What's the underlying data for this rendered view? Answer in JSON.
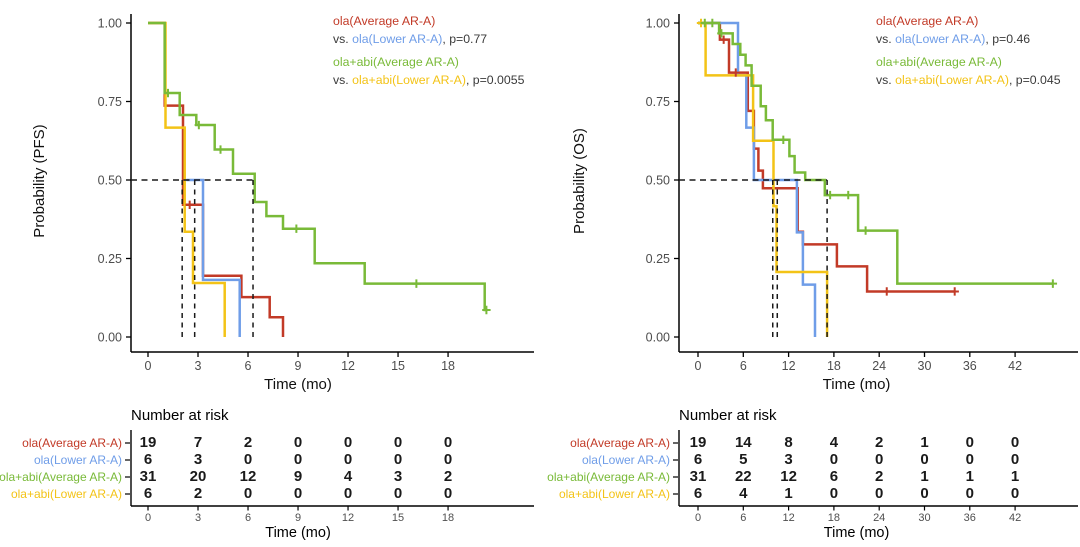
{
  "colors": {
    "red": "#c23a27",
    "blue": "#6f9de8",
    "green": "#79ba38",
    "yellow": "#f3c317",
    "dark": "#3a3a3a",
    "axis": "#000000",
    "tick_label": "#4d4d4d",
    "number": "#1a1a1a",
    "guide": "#1a1a1a"
  },
  "chart_data": [
    {
      "id": "pfs",
      "type": "line",
      "subtype": "kaplan-meier-step",
      "title": "",
      "xlabel": "Time (mo)",
      "ylabel": "Probability (PFS)",
      "xlim": [
        0,
        23
      ],
      "ylim": [
        0,
        1
      ],
      "grid": false,
      "x_ticks": [
        0,
        3,
        6,
        9,
        12,
        15,
        18
      ],
      "y_ticks": [
        0,
        0.25,
        0.5,
        0.75,
        1
      ],
      "y_tick_labels": [
        "0.00",
        "0.25",
        "0.50",
        "0.75",
        "1.00"
      ],
      "legend_position": "top-right-inside",
      "legend_lines": [
        [
          {
            "text": "ola(Average AR-A)",
            "color": "red"
          }
        ],
        [
          {
            "text": "vs. ",
            "color": "dark"
          },
          {
            "text": "ola(Lower AR-A)",
            "color": "blue"
          },
          {
            "text": ", p=0.77",
            "color": "dark"
          }
        ],
        [
          {
            "text": "ola+abi(Average AR-A)",
            "color": "green"
          }
        ],
        [
          {
            "text": "vs. ",
            "color": "dark"
          },
          {
            "text": "ola+abi(Lower AR-A)",
            "color": "yellow"
          },
          {
            "text": ", p=0.0055",
            "color": "dark"
          }
        ]
      ],
      "guides": {
        "h_y": 0.5,
        "h_x_end": 6.3,
        "v_x": [
          2.05,
          2.8,
          6.3
        ]
      },
      "series": [
        {
          "name": "ola(Average AR-A)",
          "color": "red",
          "steps": [
            [
              0,
              1
            ],
            [
              1,
              0.737
            ],
            [
              2.1,
              0.421
            ],
            [
              3.3,
              0.195
            ],
            [
              5.6,
              0.127
            ],
            [
              7.3,
              0.063
            ],
            [
              8.1,
              0
            ]
          ],
          "censors": [
            [
              2.5,
              0.421
            ]
          ]
        },
        {
          "name": "ola(Lower AR-A)",
          "color": "blue",
          "steps": [
            [
              2.3,
              0.5
            ],
            [
              3.3,
              0.182
            ],
            [
              5.5,
              0
            ]
          ],
          "censors": []
        },
        {
          "name": "ola+abi(Lower AR-A)",
          "color": "yellow",
          "steps": [
            [
              0,
              1
            ],
            [
              1.05,
              0.667
            ],
            [
              2.2,
              0.335
            ],
            [
              2.7,
              0.172
            ],
            [
              4.6,
              0
            ]
          ],
          "censors": []
        },
        {
          "name": "ola+abi(Average AR-A)",
          "color": "green",
          "steps": [
            [
              0,
              1
            ],
            [
              1,
              0.777
            ],
            [
              1.9,
              0.707
            ],
            [
              2.9,
              0.675
            ],
            [
              4,
              0.597
            ],
            [
              5.1,
              0.52
            ],
            [
              6.4,
              0.43
            ],
            [
              7.1,
              0.385
            ],
            [
              8.1,
              0.345
            ],
            [
              10,
              0.235
            ],
            [
              13,
              0.17
            ],
            [
              20.2,
              0.086
            ]
          ],
          "end": 20.35,
          "censors": [
            [
              1.2,
              0.777
            ],
            [
              3.05,
              0.675
            ],
            [
              4.35,
              0.597
            ],
            [
              8.9,
              0.345
            ],
            [
              16.1,
              0.17
            ],
            [
              20.3,
              0.086
            ]
          ]
        }
      ],
      "risk_table": {
        "title": "Number at risk",
        "xlabel": "Time (mo)",
        "times": [
          0,
          3,
          6,
          9,
          12,
          15,
          18
        ],
        "rows": [
          {
            "label": "ola(Average AR-A)",
            "color": "red",
            "counts": [
              19,
              7,
              2,
              0,
              0,
              0,
              0
            ]
          },
          {
            "label": "ola(Lower AR-A)",
            "color": "blue",
            "counts": [
              6,
              3,
              0,
              0,
              0,
              0,
              0
            ]
          },
          {
            "label": "ola+abi(Average AR-A)",
            "color": "green",
            "counts": [
              31,
              20,
              12,
              9,
              4,
              3,
              2
            ]
          },
          {
            "label": "ola+abi(Lower AR-A)",
            "color": "yellow",
            "counts": [
              6,
              2,
              0,
              0,
              0,
              0,
              0
            ]
          }
        ]
      }
    },
    {
      "id": "os",
      "type": "line",
      "subtype": "kaplan-meier-step",
      "title": "",
      "xlabel": "Time (mo)",
      "ylabel": "Probability (OS)",
      "xlim": [
        0,
        50
      ],
      "ylim": [
        0,
        1
      ],
      "grid": false,
      "x_ticks": [
        0,
        6,
        12,
        18,
        24,
        30,
        36,
        42
      ],
      "y_ticks": [
        0,
        0.25,
        0.5,
        0.75,
        1
      ],
      "y_tick_labels": [
        "0.00",
        "0.25",
        "0.50",
        "0.75",
        "1.00"
      ],
      "legend_position": "top-right-inside",
      "legend_lines": [
        [
          {
            "text": "ola(Average AR-A)",
            "color": "red"
          }
        ],
        [
          {
            "text": "vs. ",
            "color": "dark"
          },
          {
            "text": "ola(Lower AR-A)",
            "color": "blue"
          },
          {
            "text": ", p=0.46",
            "color": "dark"
          }
        ],
        [
          {
            "text": "ola+abi(Average AR-A)",
            "color": "green"
          }
        ],
        [
          {
            "text": "vs. ",
            "color": "dark"
          },
          {
            "text": "ola+abi(Lower AR-A)",
            "color": "yellow"
          },
          {
            "text": ", p=0.045",
            "color": "dark"
          }
        ]
      ],
      "guides": {
        "h_y": 0.5,
        "h_x_end": 17.1,
        "v_x": [
          9.9,
          10.5,
          17.1
        ]
      },
      "series": [
        {
          "name": "ola(Average AR-A)",
          "color": "red",
          "steps": [
            [
              0,
              1
            ],
            [
              2.9,
              0.947
            ],
            [
              4.1,
              0.842
            ],
            [
              6.6,
              0.72
            ],
            [
              7.4,
              0.6
            ],
            [
              8,
              0.53
            ],
            [
              8.6,
              0.474
            ],
            [
              13.2,
              0.335
            ],
            [
              13.9,
              0.295
            ],
            [
              18.4,
              0.225
            ],
            [
              22.4,
              0.145
            ]
          ],
          "end": 34,
          "censors": [
            [
              3.4,
              0.947
            ],
            [
              5,
              0.842
            ],
            [
              25,
              0.145
            ],
            [
              34,
              0.145
            ]
          ]
        },
        {
          "name": "ola(Lower AR-A)",
          "color": "blue",
          "steps": [
            [
              0,
              1
            ],
            [
              5.3,
              0.833
            ],
            [
              6.4,
              0.667
            ],
            [
              7.4,
              0.5
            ],
            [
              13.1,
              0.333
            ],
            [
              13.9,
              0.167
            ],
            [
              15.5,
              0
            ]
          ],
          "censors": []
        },
        {
          "name": "ola+abi(Lower AR-A)",
          "color": "yellow",
          "steps": [
            [
              0,
              1
            ],
            [
              1,
              0.833
            ],
            [
              7.3,
              0.625
            ],
            [
              10,
              0.417
            ],
            [
              10.4,
              0.207
            ],
            [
              17.1,
              0
            ]
          ],
          "censors": [
            [
              0.4,
              1
            ]
          ]
        },
        {
          "name": "ola+abi(Average AR-A)",
          "color": "green",
          "steps": [
            [
              0,
              1
            ],
            [
              2.8,
              0.967
            ],
            [
              4.6,
              0.933
            ],
            [
              5.6,
              0.899
            ],
            [
              6.3,
              0.865
            ],
            [
              7.1,
              0.8
            ],
            [
              8.3,
              0.735
            ],
            [
              9,
              0.69
            ],
            [
              9.9,
              0.628
            ],
            [
              12.1,
              0.576
            ],
            [
              12.8,
              0.524
            ],
            [
              14.2,
              0.5
            ],
            [
              16.8,
              0.452
            ],
            [
              21.2,
              0.339
            ],
            [
              26.4,
              0.17
            ]
          ],
          "end": 47,
          "censors": [
            [
              0.9,
              1
            ],
            [
              1.9,
              1
            ],
            [
              3.1,
              0.967
            ],
            [
              11.3,
              0.628
            ],
            [
              17.5,
              0.452
            ],
            [
              19.9,
              0.452
            ],
            [
              22.2,
              0.339
            ],
            [
              47,
              0.17
            ]
          ]
        }
      ],
      "risk_table": {
        "title": "Number at risk",
        "xlabel": "Time (mo)",
        "times": [
          0,
          6,
          12,
          18,
          24,
          30,
          36,
          42
        ],
        "rows": [
          {
            "label": "ola(Average AR-A)",
            "color": "red",
            "counts": [
              19,
              14,
              8,
              4,
              2,
              1,
              0,
              0
            ]
          },
          {
            "label": "ola(Lower AR-A)",
            "color": "blue",
            "counts": [
              6,
              5,
              3,
              0,
              0,
              0,
              0,
              0
            ]
          },
          {
            "label": "ola+abi(Average AR-A)",
            "color": "green",
            "counts": [
              31,
              22,
              12,
              6,
              2,
              1,
              1,
              1
            ]
          },
          {
            "label": "ola+abi(Lower AR-A)",
            "color": "yellow",
            "counts": [
              6,
              4,
              1,
              0,
              0,
              0,
              0,
              0
            ]
          }
        ]
      }
    }
  ]
}
